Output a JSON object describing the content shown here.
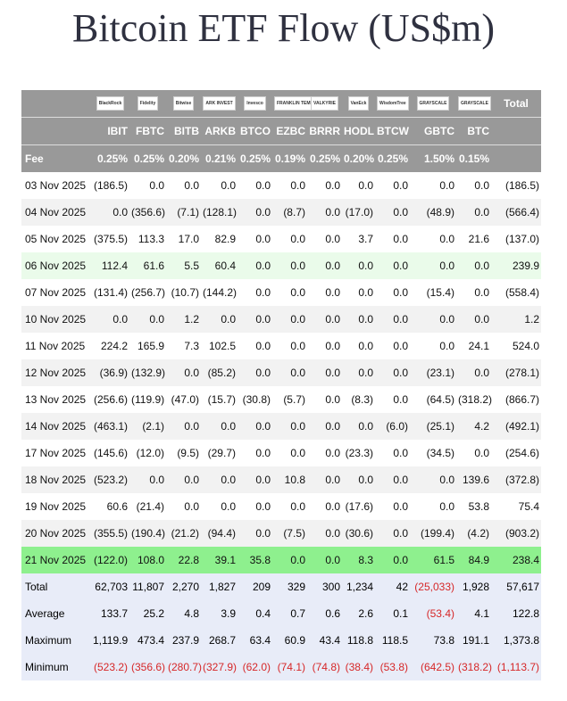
{
  "title": "Bitcoin ETF Flow (US$m)",
  "colors": {
    "header_bg": "#999999",
    "negative": "#d62728",
    "highlight_light": "#eafbea",
    "highlight_strong": "#8ef08e",
    "summary_bg": "#e8ecf8"
  },
  "chart_data": {
    "type": "table",
    "title": "Bitcoin ETF Flow (US$m)",
    "issuer_logos": [
      "BlackRock",
      "Fidelity",
      "Bitwise",
      "ARK INVEST",
      "Invesco",
      "FRANKLIN TEMPLETON",
      "VALKYRIE",
      "VanEck",
      "WisdomTree",
      "GRAYSCALE",
      "GRAYSCALE"
    ],
    "total_header": "Total",
    "fee_label": "Fee",
    "columns": [
      "IBIT",
      "FBTC",
      "BITB",
      "ARKB",
      "BTCO",
      "EZBC",
      "BRRR",
      "HODL",
      "BTCW",
      "GBTC",
      "BTC"
    ],
    "fees": [
      "0.25%",
      "0.25%",
      "0.20%",
      "0.21%",
      "0.25%",
      "0.19%",
      "0.25%",
      "0.20%",
      "0.25%",
      "1.50%",
      "0.15%"
    ],
    "rows": [
      {
        "date": "03 Nov 2025",
        "values": [
          "(186.5)",
          "0.0",
          "0.0",
          "0.0",
          "0.0",
          "0.0",
          "0.0",
          "0.0",
          "0.0",
          "0.0",
          "0.0"
        ],
        "total": "(186.5)"
      },
      {
        "date": "04 Nov 2025",
        "values": [
          "0.0",
          "(356.6)",
          "(7.1)",
          "(128.1)",
          "0.0",
          "(8.7)",
          "0.0",
          "(17.0)",
          "0.0",
          "(48.9)",
          "0.0"
        ],
        "total": "(566.4)"
      },
      {
        "date": "05 Nov 2025",
        "values": [
          "(375.5)",
          "113.3",
          "17.0",
          "82.9",
          "0.0",
          "0.0",
          "0.0",
          "3.7",
          "0.0",
          "0.0",
          "21.6"
        ],
        "total": "(137.0)"
      },
      {
        "date": "06 Nov 2025",
        "values": [
          "112.4",
          "61.6",
          "5.5",
          "60.4",
          "0.0",
          "0.0",
          "0.0",
          "0.0",
          "0.0",
          "0.0",
          "0.0"
        ],
        "total": "239.9"
      },
      {
        "date": "07 Nov 2025",
        "values": [
          "(131.4)",
          "(256.7)",
          "(10.7)",
          "(144.2)",
          "0.0",
          "0.0",
          "0.0",
          "0.0",
          "0.0",
          "(15.4)",
          "0.0"
        ],
        "total": "(558.4)"
      },
      {
        "date": "10 Nov 2025",
        "values": [
          "0.0",
          "0.0",
          "1.2",
          "0.0",
          "0.0",
          "0.0",
          "0.0",
          "0.0",
          "0.0",
          "0.0",
          "0.0"
        ],
        "total": "1.2"
      },
      {
        "date": "11 Nov 2025",
        "values": [
          "224.2",
          "165.9",
          "7.3",
          "102.5",
          "0.0",
          "0.0",
          "0.0",
          "0.0",
          "0.0",
          "0.0",
          "24.1"
        ],
        "total": "524.0"
      },
      {
        "date": "12 Nov 2025",
        "values": [
          "(36.9)",
          "(132.9)",
          "0.0",
          "(85.2)",
          "0.0",
          "0.0",
          "0.0",
          "0.0",
          "0.0",
          "(23.1)",
          "0.0"
        ],
        "total": "(278.1)"
      },
      {
        "date": "13 Nov 2025",
        "values": [
          "(256.6)",
          "(119.9)",
          "(47.0)",
          "(15.7)",
          "(30.8)",
          "(5.7)",
          "0.0",
          "(8.3)",
          "0.0",
          "(64.5)",
          "(318.2)"
        ],
        "total": "(866.7)"
      },
      {
        "date": "14 Nov 2025",
        "values": [
          "(463.1)",
          "(2.1)",
          "0.0",
          "0.0",
          "0.0",
          "0.0",
          "0.0",
          "0.0",
          "(6.0)",
          "(25.1)",
          "4.2"
        ],
        "total": "(492.1)"
      },
      {
        "date": "17 Nov 2025",
        "values": [
          "(145.6)",
          "(12.0)",
          "(9.5)",
          "(29.7)",
          "0.0",
          "0.0",
          "0.0",
          "(23.3)",
          "0.0",
          "(34.5)",
          "0.0"
        ],
        "total": "(254.6)"
      },
      {
        "date": "18 Nov 2025",
        "values": [
          "(523.2)",
          "0.0",
          "0.0",
          "0.0",
          "0.0",
          "10.8",
          "0.0",
          "0.0",
          "0.0",
          "0.0",
          "139.6"
        ],
        "total": "(372.8)"
      },
      {
        "date": "19 Nov 2025",
        "values": [
          "60.6",
          "(21.4)",
          "0.0",
          "0.0",
          "0.0",
          "0.0",
          "0.0",
          "(17.6)",
          "0.0",
          "0.0",
          "53.8"
        ],
        "total": "75.4"
      },
      {
        "date": "20 Nov 2025",
        "values": [
          "(355.5)",
          "(190.4)",
          "(21.2)",
          "(94.4)",
          "0.0",
          "(7.5)",
          "0.0",
          "(30.6)",
          "0.0",
          "(199.4)",
          "(4.2)"
        ],
        "total": "(903.2)"
      },
      {
        "date": "21 Nov 2025",
        "values": [
          "(122.0)",
          "108.0",
          "22.8",
          "39.1",
          "35.8",
          "0.0",
          "0.0",
          "8.3",
          "0.0",
          "61.5",
          "84.9"
        ],
        "total": "238.4"
      }
    ],
    "summary": [
      {
        "label": "Total",
        "values": [
          "62,703",
          "11,807",
          "2,270",
          "1,827",
          "209",
          "329",
          "300",
          "1,234",
          "42",
          "(25,033)",
          "1,928"
        ],
        "total": "57,617"
      },
      {
        "label": "Average",
        "values": [
          "133.7",
          "25.2",
          "4.8",
          "3.9",
          "0.4",
          "0.7",
          "0.6",
          "2.6",
          "0.1",
          "(53.4)",
          "4.1"
        ],
        "total": "122.8"
      },
      {
        "label": "Maximum",
        "values": [
          "1,119.9",
          "473.4",
          "237.9",
          "268.7",
          "63.4",
          "60.9",
          "43.4",
          "118.8",
          "118.5",
          "73.8",
          "191.1"
        ],
        "total": "1,373.8"
      },
      {
        "label": "Minimum",
        "values": [
          "(523.2)",
          "(356.6)",
          "(280.7)",
          "(327.9)",
          "(62.0)",
          "(74.1)",
          "(74.8)",
          "(38.4)",
          "(53.8)",
          "(642.5)",
          "(318.2)"
        ],
        "total": "(1,113.7)"
      }
    ]
  }
}
